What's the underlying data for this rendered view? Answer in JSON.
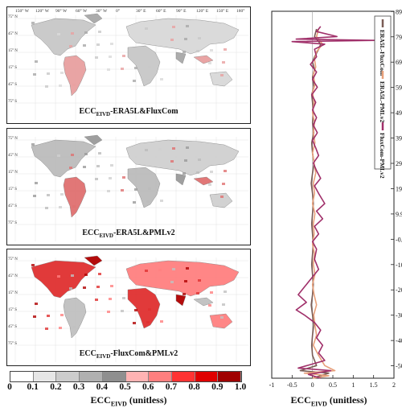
{
  "maps": {
    "lon_ticks": [
      "150° W",
      "120° W",
      "90° W",
      "60° W",
      "30° W",
      "0°",
      "30° E",
      "60° E",
      "90° E",
      "120° E",
      "150° E",
      "180°"
    ],
    "lat_ticks": [
      "75° N",
      "45° N",
      "15° N",
      "15° S",
      "45° S",
      "75° S"
    ],
    "panels": [
      {
        "title_main": "ECC",
        "title_sub": "EIVD",
        "title_rest": "-ERA5L&FluxCom"
      },
      {
        "title_main": "ECC",
        "title_sub": "EIVD",
        "title_rest": "-ERA5L&PMLv2"
      },
      {
        "title_main": "ECC",
        "title_sub": "EIVD",
        "title_rest": "-FluxCom&PMLv2"
      }
    ]
  },
  "colorbar": {
    "ticks": [
      "0",
      "0.1",
      "0.2",
      "0.3",
      "0.4",
      "0.5",
      "0.6",
      "0.7",
      "0.8",
      "0.9",
      "1.0"
    ],
    "colors": [
      "#ffffff",
      "#e6e6e6",
      "#cccccc",
      "#b0b0b0",
      "#8f8f8f",
      "#ffb3b3",
      "#ff7f7f",
      "#ff3333",
      "#e00000",
      "#a00000"
    ],
    "label_main": "ECC",
    "label_sub": "EIVD",
    "label_rest": "  (unitless)"
  },
  "chart_data": {
    "type": "line",
    "xlabel_main": "ECC",
    "xlabel_sub": "EIVD",
    "xlabel_rest": "  (unitless)",
    "xlim": [
      -1,
      2
    ],
    "xticks": [
      "-1",
      "-0.5",
      "0",
      "0.5",
      "1",
      "1.5",
      "2"
    ],
    "ylim": [
      -55,
      90
    ],
    "yticks": [
      "89.9",
      "79.9",
      "69.9",
      "59.9",
      "49.9",
      "39.9",
      "29.9",
      "19.9",
      "9.9",
      "-0.1",
      "-10.1",
      "-20.1",
      "-30.1",
      "-40.1",
      "-50.1"
    ],
    "series": [
      {
        "name": "ERA5L-FluxCom",
        "color": "#7a5c55",
        "points": [
          [
            0.1,
            83
          ],
          [
            0.05,
            80
          ],
          [
            0.2,
            77
          ],
          [
            0.15,
            75
          ],
          [
            0.05,
            72
          ],
          [
            0.0,
            70
          ],
          [
            0.05,
            67
          ],
          [
            0.0,
            64
          ],
          [
            0.03,
            60
          ],
          [
            -0.02,
            57
          ],
          [
            0.0,
            54
          ],
          [
            0.02,
            50
          ],
          [
            0.0,
            46
          ],
          [
            0.03,
            42
          ],
          [
            -0.02,
            38
          ],
          [
            0.0,
            34
          ],
          [
            0.04,
            30
          ],
          [
            0.0,
            26
          ],
          [
            -0.03,
            22
          ],
          [
            0.0,
            18
          ],
          [
            0.02,
            14
          ],
          [
            0.0,
            10
          ],
          [
            -0.02,
            6
          ],
          [
            0.0,
            2
          ],
          [
            0.02,
            -2
          ],
          [
            0.0,
            -6
          ],
          [
            -0.02,
            -10
          ],
          [
            0.0,
            -14
          ],
          [
            0.02,
            -18
          ],
          [
            0.0,
            -22
          ],
          [
            -0.03,
            -26
          ],
          [
            0.0,
            -30
          ],
          [
            0.03,
            -34
          ],
          [
            0.0,
            -38
          ],
          [
            -0.02,
            -42
          ],
          [
            0.0,
            -46
          ],
          [
            0.1,
            -50
          ],
          [
            -0.3,
            -52
          ],
          [
            0.4,
            -53
          ],
          [
            0.0,
            -55
          ]
        ]
      },
      {
        "name": "ERA5L-PMLv2",
        "color": "#e8a07a",
        "points": [
          [
            0.15,
            83
          ],
          [
            0.1,
            80
          ],
          [
            0.25,
            77
          ],
          [
            0.1,
            74
          ],
          [
            0.05,
            71
          ],
          [
            0.08,
            68
          ],
          [
            0.02,
            65
          ],
          [
            0.06,
            61
          ],
          [
            0.0,
            58
          ],
          [
            0.04,
            54
          ],
          [
            0.0,
            50
          ],
          [
            0.05,
            46
          ],
          [
            0.02,
            42
          ],
          [
            0.06,
            38
          ],
          [
            0.0,
            34
          ],
          [
            0.04,
            30
          ],
          [
            0.08,
            26
          ],
          [
            0.02,
            22
          ],
          [
            0.05,
            18
          ],
          [
            0.0,
            14
          ],
          [
            0.06,
            10
          ],
          [
            0.02,
            6
          ],
          [
            0.04,
            2
          ],
          [
            0.0,
            -2
          ],
          [
            0.05,
            -6
          ],
          [
            0.02,
            -10
          ],
          [
            0.06,
            -14
          ],
          [
            0.0,
            -18
          ],
          [
            0.04,
            -22
          ],
          [
            0.1,
            -26
          ],
          [
            0.03,
            -30
          ],
          [
            0.06,
            -34
          ],
          [
            0.1,
            -38
          ],
          [
            0.02,
            -42
          ],
          [
            0.15,
            -46
          ],
          [
            0.3,
            -50
          ],
          [
            0.55,
            -52
          ],
          [
            -0.2,
            -53
          ],
          [
            0.4,
            -54
          ],
          [
            0.0,
            -55
          ]
        ]
      },
      {
        "name": "FluxCom-PMLv2",
        "color": "#a0306a",
        "points": [
          [
            0.2,
            84
          ],
          [
            0.1,
            82
          ],
          [
            0.6,
            80
          ],
          [
            -0.4,
            79
          ],
          [
            1.55,
            78.5
          ],
          [
            -0.5,
            78
          ],
          [
            0.3,
            77
          ],
          [
            0.05,
            75
          ],
          [
            0.1,
            72
          ],
          [
            -0.05,
            69
          ],
          [
            0.1,
            66
          ],
          [
            0.0,
            63
          ],
          [
            0.12,
            60
          ],
          [
            -0.02,
            57
          ],
          [
            0.08,
            54
          ],
          [
            0.0,
            51
          ],
          [
            0.1,
            48
          ],
          [
            0.02,
            45
          ],
          [
            0.12,
            42
          ],
          [
            0.0,
            39
          ],
          [
            0.08,
            36
          ],
          [
            0.15,
            33
          ],
          [
            0.02,
            30
          ],
          [
            0.1,
            27
          ],
          [
            0.2,
            24
          ],
          [
            0.05,
            21
          ],
          [
            0.15,
            18
          ],
          [
            0.3,
            14
          ],
          [
            0.1,
            11
          ],
          [
            0.25,
            8
          ],
          [
            0.05,
            5
          ],
          [
            0.15,
            2
          ],
          [
            0.0,
            -1
          ],
          [
            0.1,
            -4
          ],
          [
            0.05,
            -8
          ],
          [
            0.15,
            -12
          ],
          [
            -0.05,
            -16
          ],
          [
            -0.2,
            -19
          ],
          [
            -0.35,
            -22
          ],
          [
            -0.15,
            -25
          ],
          [
            -0.4,
            -28
          ],
          [
            -0.2,
            -30
          ],
          [
            0.05,
            -33
          ],
          [
            0.2,
            -36
          ],
          [
            0.1,
            -39
          ],
          [
            0.25,
            -42
          ],
          [
            0.15,
            -45
          ],
          [
            0.3,
            -48
          ],
          [
            -0.35,
            -51
          ],
          [
            0.45,
            -52
          ],
          [
            -0.1,
            -53.5
          ],
          [
            0.2,
            -55
          ]
        ]
      }
    ]
  }
}
